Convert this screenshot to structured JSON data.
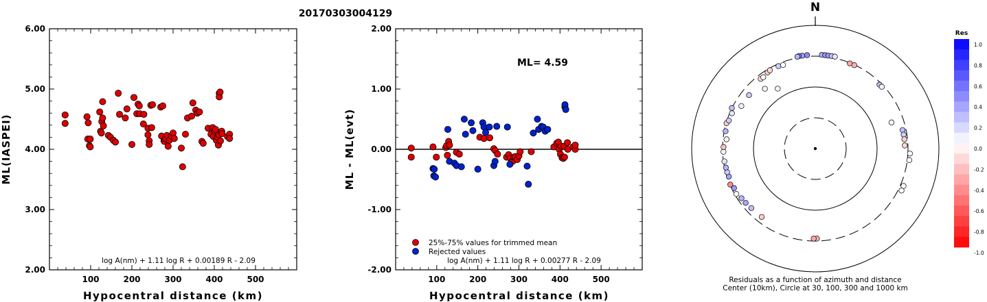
{
  "page_title": "20170303004129",
  "chart_data": [
    {
      "type": "scatter",
      "ylabel": "ML(IASPEI)",
      "xlabel": "Hypocentral distance (km)",
      "xlim": [
        0,
        600
      ],
      "ylim": [
        2.0,
        6.0
      ],
      "xticks": [
        "100",
        "200",
        "300",
        "400",
        "500"
      ],
      "yticks": [
        "2.00",
        "3.00",
        "4.00",
        "5.00",
        "6.00"
      ],
      "formula": "log A(nm) + 1.11 log R + 0.00189 R - 2.09",
      "series": [
        {
          "color": "#dd0000",
          "points": [
            [
              38,
              4.57
            ],
            [
              38,
              4.43
            ],
            [
              91,
              4.54
            ],
            [
              93,
              4.17
            ],
            [
              94,
              4.44
            ],
            [
              97,
              4.06
            ],
            [
              99,
              4.04
            ],
            [
              99,
              4.17
            ],
            [
              122,
              4.62
            ],
            [
              124,
              4.3
            ],
            [
              126,
              4.27
            ],
            [
              127,
              4.46
            ],
            [
              129,
              4.52
            ],
            [
              129,
              4.79
            ],
            [
              131,
              4.39
            ],
            [
              143,
              4.23
            ],
            [
              148,
              4.2
            ],
            [
              155,
              4.15
            ],
            [
              160,
              4.12
            ],
            [
              167,
              4.93
            ],
            [
              170,
              4.58
            ],
            [
              184,
              4.52
            ],
            [
              188,
              4.67
            ],
            [
              200,
              4.08
            ],
            [
              205,
              4.86
            ],
            [
              212,
              4.59
            ],
            [
              215,
              4.75
            ],
            [
              218,
              4.72
            ],
            [
              219,
              4.59
            ],
            [
              228,
              4.42
            ],
            [
              229,
              4.58
            ],
            [
              239,
              4.24
            ],
            [
              239,
              4.35
            ],
            [
              242,
              4.14
            ],
            [
              242,
              4.08
            ],
            [
              246,
              4.73
            ],
            [
              248,
              4.36
            ],
            [
              250,
              4.74
            ],
            [
              270,
              4.7
            ],
            [
              272,
              4.22
            ],
            [
              275,
              4.72
            ],
            [
              278,
              4.14
            ],
            [
              279,
              4.13
            ],
            [
              282,
              4.17
            ],
            [
              285,
              4.23
            ],
            [
              288,
              4.05
            ],
            [
              291,
              4.15
            ],
            [
              296,
              4.22
            ],
            [
              300,
              4.27
            ],
            [
              303,
              4.18
            ],
            [
              320,
              4.02
            ],
            [
              323,
              3.71
            ],
            [
              330,
              4.25
            ],
            [
              335,
              4.52
            ],
            [
              345,
              4.55
            ],
            [
              348,
              4.77
            ],
            [
              355,
              4.65
            ],
            [
              359,
              4.6
            ],
            [
              364,
              4.62
            ],
            [
              370,
              4.13
            ],
            [
              373,
              4.1
            ],
            [
              385,
              4.35
            ],
            [
              392,
              4.25
            ],
            [
              396,
              4.36
            ],
            [
              398,
              4.21
            ],
            [
              401,
              4.3
            ],
            [
              403,
              4.33
            ],
            [
              405,
              4.15
            ],
            [
              408,
              4.2
            ],
            [
              410,
              4.07
            ],
            [
              411,
              4.24
            ],
            [
              412,
              4.93
            ],
            [
              412,
              4.87
            ],
            [
              414,
              4.95
            ],
            [
              415,
              4.14
            ],
            [
              418,
              4.3
            ],
            [
              419,
              4.26
            ],
            [
              432,
              4.21
            ],
            [
              437,
              4.25
            ],
            [
              437,
              4.18
            ]
          ]
        }
      ]
    },
    {
      "type": "scatter",
      "ylabel": "ML - ML(evt)",
      "xlabel": "Hypocentral distance (km)",
      "xlim": [
        0,
        600
      ],
      "ylim": [
        -2.0,
        2.0
      ],
      "xticks": [
        "100",
        "200",
        "300",
        "400",
        "500"
      ],
      "yticks": [
        "-2.00",
        "-1.00",
        "0.00",
        "1.00",
        "2.00"
      ],
      "annotation": "ML= 4.59",
      "formula": "log A(nm) + 1.11 log R + 0.00277 R - 2.09",
      "reference_line": 0,
      "legend": [
        {
          "label": "25%-75% values for trimmed mean",
          "color": "#dd0000"
        },
        {
          "label": "Rejected values",
          "color": "#0022cc"
        }
      ],
      "series": [
        {
          "color": "#dd0000",
          "points": [
            [
              38,
              0.02
            ],
            [
              38,
              -0.13
            ],
            [
              91,
              0.04
            ],
            [
              99,
              -0.13
            ],
            [
              122,
              0.03
            ],
            [
              124,
              0.06
            ],
            [
              126,
              -0.1
            ],
            [
              129,
              0.13
            ],
            [
              131,
              0.07
            ],
            [
              148,
              -0.05
            ],
            [
              155,
              -0.08
            ],
            [
              205,
              0.2
            ],
            [
              215,
              0.18
            ],
            [
              229,
              0.19
            ],
            [
              239,
              0.01
            ],
            [
              242,
              -0.02
            ],
            [
              248,
              -0.08
            ],
            [
              270,
              -0.13
            ],
            [
              275,
              -0.09
            ],
            [
              279,
              -0.15
            ],
            [
              282,
              -0.21
            ],
            [
              285,
              -0.2
            ],
            [
              288,
              -0.13
            ],
            [
              291,
              -0.12
            ],
            [
              296,
              -0.17
            ],
            [
              300,
              -0.11
            ],
            [
              303,
              -0.04
            ],
            [
              330,
              -0.04
            ],
            [
              385,
              0.04
            ],
            [
              392,
              0.1
            ],
            [
              396,
              0.12
            ],
            [
              398,
              0.0
            ],
            [
              401,
              -0.08
            ],
            [
              403,
              0.05
            ],
            [
              405,
              -0.14
            ],
            [
              408,
              -0.15
            ],
            [
              410,
              0.05
            ],
            [
              411,
              -0.13
            ],
            [
              418,
              0.11
            ],
            [
              419,
              0.0
            ],
            [
              432,
              0.04
            ],
            [
              437,
              0.0
            ],
            [
              437,
              0.07
            ]
          ]
        },
        {
          "color": "#0022cc",
          "points": [
            [
              91,
              -0.32
            ],
            [
              93,
              -0.44
            ],
            [
              94,
              -0.33
            ],
            [
              97,
              -0.46
            ],
            [
              127,
              0.33
            ],
            [
              131,
              -0.2
            ],
            [
              143,
              -0.23
            ],
            [
              148,
              -0.27
            ],
            [
              160,
              -0.29
            ],
            [
              167,
              0.5
            ],
            [
              170,
              0.25
            ],
            [
              184,
              0.44
            ],
            [
              188,
              0.31
            ],
            [
              200,
              -0.33
            ],
            [
              212,
              0.44
            ],
            [
              215,
              0.37
            ],
            [
              219,
              0.28
            ],
            [
              228,
              0.37
            ],
            [
              239,
              -0.27
            ],
            [
              242,
              -0.2
            ],
            [
              246,
              0.38
            ],
            [
              272,
              0.37
            ],
            [
              278,
              -0.25
            ],
            [
              320,
              -0.28
            ],
            [
              323,
              -0.58
            ],
            [
              335,
              0.27
            ],
            [
              345,
              0.5
            ],
            [
              348,
              0.33
            ],
            [
              355,
              0.38
            ],
            [
              359,
              0.37
            ],
            [
              364,
              0.3
            ],
            [
              370,
              0.33
            ],
            [
              412,
              0.7
            ],
            [
              412,
              0.74
            ],
            [
              414,
              0.66
            ]
          ]
        }
      ]
    },
    {
      "type": "scatter",
      "subtype": "polar",
      "north_label": "N",
      "caption_line1": "Residuals as a function of azimuth and distance",
      "caption_line2": "Center (10km), Circle at 30, 100, 300 and 1000 km",
      "colorbar_title": "Res",
      "colorbar_ticks": [
        "1.0",
        "0.8",
        "0.6",
        "0.4",
        "0.2",
        "0.0",
        "-0.2",
        "-0.4",
        "-0.6",
        "-0.8",
        "-1.0"
      ],
      "colorbar_range": [
        -1.0,
        1.0
      ],
      "points": [
        {
          "az": 4,
          "dist": 318,
          "res": 0.32
        },
        {
          "az": 6,
          "dist": 318,
          "res": 0.43
        },
        {
          "az": 8,
          "dist": 317,
          "res": 0.39
        },
        {
          "az": 10,
          "dist": 318,
          "res": 0.24
        },
        {
          "az": 12,
          "dist": 319,
          "res": 0.1
        },
        {
          "az": 355,
          "dist": 316,
          "res": 0.45
        },
        {
          "az": 352,
          "dist": 316,
          "res": 0.36
        },
        {
          "az": 350,
          "dist": 318,
          "res": 0.48
        },
        {
          "az": 349,
          "dist": 314,
          "res": 0.3
        },
        {
          "az": 22,
          "dist": 294,
          "res": -0.35
        },
        {
          "az": 25,
          "dist": 296,
          "res": -0.3
        },
        {
          "az": 45,
          "dist": 280,
          "res": 0.28
        },
        {
          "az": 47,
          "dist": 282,
          "res": 0.05
        },
        {
          "az": 71,
          "dist": 195,
          "res": 0.03
        },
        {
          "az": 78,
          "dist": 265,
          "res": 0.25
        },
        {
          "az": 81,
          "dist": 267,
          "res": 0.2
        },
        {
          "az": 84,
          "dist": 268,
          "res": -0.2
        },
        {
          "az": 88,
          "dist": 268,
          "res": -0.15
        },
        {
          "az": 93,
          "dist": 325,
          "res": 0.03
        },
        {
          "az": 97,
          "dist": 324,
          "res": 0.0
        },
        {
          "az": 113,
          "dist": 339,
          "res": 0.02
        },
        {
          "az": 116,
          "dist": 340,
          "res": 0.0
        },
        {
          "az": 179,
          "dist": 275,
          "res": -0.3
        },
        {
          "az": 181,
          "dist": 275,
          "res": -0.35
        },
        {
          "az": 218,
          "dist": 245,
          "res": -0.2
        },
        {
          "az": 227,
          "dist": 249,
          "res": 0.25
        },
        {
          "az": 232,
          "dist": 257,
          "res": 0.35
        },
        {
          "az": 236,
          "dist": 263,
          "res": 0.3
        },
        {
          "az": 240,
          "dist": 283,
          "res": 0.0
        },
        {
          "az": 244,
          "dist": 276,
          "res": 0.4
        },
        {
          "az": 247,
          "dist": 296,
          "res": -0.45
        },
        {
          "az": 252,
          "dist": 281,
          "res": 0.35
        },
        {
          "az": 255,
          "dist": 285,
          "res": 0.2
        },
        {
          "az": 258,
          "dist": 286,
          "res": 0.3
        },
        {
          "az": 262,
          "dist": 290,
          "res": 0.1
        },
        {
          "az": 268,
          "dist": 291,
          "res": 0.05
        },
        {
          "az": 271,
          "dist": 290,
          "res": -0.25
        },
        {
          "az": 276,
          "dist": 265,
          "res": -0.05
        },
        {
          "az": 281,
          "dist": 286,
          "res": 0.3
        },
        {
          "az": 286,
          "dist": 296,
          "res": -0.2
        },
        {
          "az": 288,
          "dist": 281,
          "res": 0.2
        },
        {
          "az": 293,
          "dist": 278,
          "res": 0.1
        },
        {
          "az": 296,
          "dist": 302,
          "res": 0.25
        },
        {
          "az": 300,
          "dist": 231,
          "res": 0.05
        },
        {
          "az": 309,
          "dist": 230,
          "res": 0.2
        },
        {
          "az": 322,
          "dist": 260,
          "res": -0.15
        },
        {
          "az": 324,
          "dist": 258,
          "res": 0.0
        },
        {
          "az": 328,
          "dist": 273,
          "res": -0.2
        },
        {
          "az": 330,
          "dist": 280,
          "res": -0.15
        },
        {
          "az": 336,
          "dist": 278,
          "res": 0.2
        },
        {
          "az": 339,
          "dist": 271,
          "res": 0.0
        },
        {
          "az": 320,
          "dist": 180,
          "res": 0.05
        },
        {
          "az": 328,
          "dist": 138,
          "res": -0.05
        }
      ]
    }
  ]
}
